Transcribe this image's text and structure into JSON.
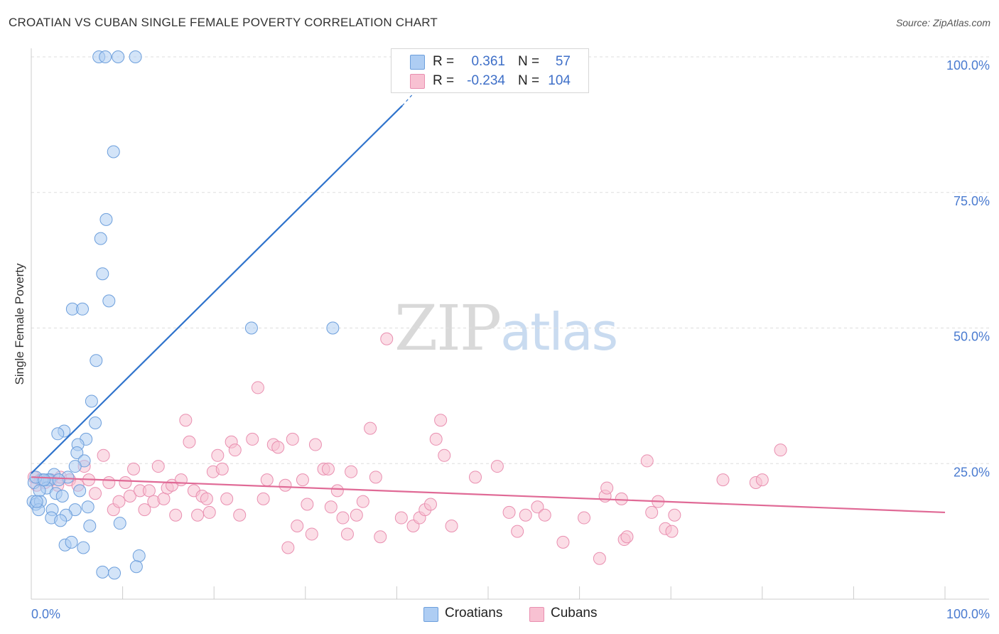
{
  "header": {
    "title": "CROATIAN VS CUBAN SINGLE FEMALE POVERTY CORRELATION CHART",
    "source": "Source: ZipAtlas.com"
  },
  "watermark": {
    "zip": "ZIP",
    "atlas": "atlas"
  },
  "colors": {
    "croatians_fill": "#aecdf3",
    "croatians_stroke": "#6d9fdc",
    "croatians_line": "#2f73cc",
    "cubans_fill": "#f8c1d2",
    "cubans_stroke": "#e98fb0",
    "cubans_line": "#e06a96",
    "grid": "#dedede",
    "axis_tick_text": "#4a7bd0"
  },
  "legend": {
    "r_label": "R =",
    "n_label": "N =",
    "croatians": {
      "r": "0.361",
      "n": "57"
    },
    "cubans": {
      "r": "-0.234",
      "n": "104"
    }
  },
  "bottom_legend": {
    "croatians": "Croatians",
    "cubans": "Cubans"
  },
  "chart_data": {
    "type": "scatter",
    "title": "CROATIAN VS CUBAN SINGLE FEMALE POVERTY CORRELATION CHART",
    "xlabel": "",
    "ylabel": "Single Female Poverty",
    "xlim": [
      0,
      100
    ],
    "ylim": [
      0,
      100
    ],
    "x_tick_labels": {
      "min": "0.0%",
      "max": "100.0%"
    },
    "y_tick_labels": [
      "25.0%",
      "50.0%",
      "75.0%",
      "100.0%"
    ],
    "y_ticks": [
      25,
      50,
      75,
      100
    ],
    "grid": true,
    "legend_position": "top-center",
    "series": [
      {
        "name": "Croatians",
        "r": 0.361,
        "n": 57,
        "trend": {
          "x": [
            0,
            40.6
          ],
          "y": [
            23.2,
            91.0
          ],
          "dashed_to": [
            42.5,
            94.5
          ]
        },
        "points": [
          [
            7.4,
            100
          ],
          [
            8.1,
            100
          ],
          [
            9.5,
            100
          ],
          [
            11.4,
            100
          ],
          [
            9.0,
            82.5
          ],
          [
            8.2,
            70
          ],
          [
            7.6,
            66.5
          ],
          [
            7.8,
            60
          ],
          [
            8.5,
            55
          ],
          [
            4.5,
            53.5
          ],
          [
            5.6,
            53.5
          ],
          [
            24.1,
            50
          ],
          [
            33.0,
            50
          ],
          [
            7.1,
            44
          ],
          [
            6.6,
            36.5
          ],
          [
            7.0,
            32.5
          ],
          [
            3.6,
            31
          ],
          [
            2.9,
            30.5
          ],
          [
            6.0,
            29.5
          ],
          [
            5.1,
            28.5
          ],
          [
            5.0,
            27
          ],
          [
            5.8,
            25.5
          ],
          [
            4.8,
            24.5
          ],
          [
            4.0,
            22.5
          ],
          [
            2.5,
            23
          ],
          [
            1.8,
            22
          ],
          [
            2.0,
            22
          ],
          [
            1.2,
            22
          ],
          [
            0.3,
            21.5
          ],
          [
            0.5,
            22.5
          ],
          [
            1.7,
            20.5
          ],
          [
            0.9,
            20
          ],
          [
            2.7,
            19.5
          ],
          [
            5.3,
            20
          ],
          [
            0.2,
            18
          ],
          [
            0.5,
            17.5
          ],
          [
            1.0,
            18
          ],
          [
            0.8,
            16.5
          ],
          [
            2.3,
            16.5
          ],
          [
            3.4,
            19
          ],
          [
            4.8,
            16.5
          ],
          [
            6.2,
            17
          ],
          [
            3.8,
            15.5
          ],
          [
            2.2,
            15
          ],
          [
            3.2,
            14.5
          ],
          [
            6.4,
            13.5
          ],
          [
            9.7,
            14
          ],
          [
            3.7,
            10
          ],
          [
            4.4,
            10.5
          ],
          [
            5.7,
            9.5
          ],
          [
            11.8,
            8
          ],
          [
            11.5,
            6
          ],
          [
            7.8,
            5
          ],
          [
            9.1,
            4.8
          ],
          [
            0.6,
            18
          ],
          [
            1.4,
            22
          ],
          [
            3.0,
            22
          ]
        ]
      },
      {
        "name": "Cubans",
        "r": -0.234,
        "n": 104,
        "trend": {
          "x": [
            0,
            100
          ],
          "y": [
            22.5,
            16.0
          ]
        },
        "points": [
          [
            0.3,
            22.5
          ],
          [
            0.6,
            21
          ],
          [
            1.0,
            22
          ],
          [
            1.5,
            21.5
          ],
          [
            2.2,
            22
          ],
          [
            2.9,
            21
          ],
          [
            3.2,
            22.5
          ],
          [
            4.2,
            22
          ],
          [
            5.1,
            21
          ],
          [
            5.8,
            24.5
          ],
          [
            6.3,
            22
          ],
          [
            7.0,
            19.5
          ],
          [
            7.9,
            26.5
          ],
          [
            8.5,
            21.5
          ],
          [
            9.0,
            16.5
          ],
          [
            9.6,
            18
          ],
          [
            10.3,
            21.5
          ],
          [
            10.8,
            19
          ],
          [
            11.2,
            24
          ],
          [
            11.9,
            20
          ],
          [
            12.4,
            16.5
          ],
          [
            12.9,
            20
          ],
          [
            13.4,
            18
          ],
          [
            13.9,
            24.5
          ],
          [
            14.5,
            18.5
          ],
          [
            14.9,
            20.5
          ],
          [
            15.4,
            21
          ],
          [
            15.8,
            15.5
          ],
          [
            16.4,
            22
          ],
          [
            16.9,
            33
          ],
          [
            17.3,
            29
          ],
          [
            17.8,
            20
          ],
          [
            18.2,
            15.5
          ],
          [
            18.7,
            19
          ],
          [
            19.2,
            18.5
          ],
          [
            19.5,
            16
          ],
          [
            19.9,
            23.5
          ],
          [
            20.4,
            26.5
          ],
          [
            20.9,
            24
          ],
          [
            21.4,
            18.5
          ],
          [
            21.9,
            29
          ],
          [
            22.3,
            27.5
          ],
          [
            22.8,
            15.5
          ],
          [
            24.2,
            29.5
          ],
          [
            24.8,
            39
          ],
          [
            25.4,
            18.5
          ],
          [
            25.8,
            22
          ],
          [
            26.5,
            28.5
          ],
          [
            27.0,
            28
          ],
          [
            27.8,
            21
          ],
          [
            28.1,
            9.5
          ],
          [
            28.6,
            29.5
          ],
          [
            29.1,
            13.5
          ],
          [
            29.7,
            22
          ],
          [
            30.2,
            17.5
          ],
          [
            30.7,
            12
          ],
          [
            31.1,
            28.5
          ],
          [
            32.0,
            24
          ],
          [
            32.5,
            24
          ],
          [
            32.8,
            17
          ],
          [
            33.5,
            20
          ],
          [
            34.1,
            15
          ],
          [
            34.6,
            12
          ],
          [
            35.0,
            23.5
          ],
          [
            35.6,
            15.5
          ],
          [
            36.3,
            18
          ],
          [
            37.1,
            31.5
          ],
          [
            37.7,
            22.5
          ],
          [
            38.2,
            11.5
          ],
          [
            38.9,
            48
          ],
          [
            40.5,
            15
          ],
          [
            41.8,
            13.5
          ],
          [
            42.5,
            15
          ],
          [
            43.1,
            16.5
          ],
          [
            43.7,
            17.5
          ],
          [
            44.3,
            29.5
          ],
          [
            44.8,
            33
          ],
          [
            45.2,
            26.5
          ],
          [
            46.0,
            13.5
          ],
          [
            48.6,
            22.5
          ],
          [
            51.0,
            24.5
          ],
          [
            52.3,
            16
          ],
          [
            53.2,
            12.5
          ],
          [
            54.1,
            15.5
          ],
          [
            55.4,
            17
          ],
          [
            56.2,
            15.5
          ],
          [
            58.2,
            10.5
          ],
          [
            60.5,
            15
          ],
          [
            62.2,
            7.5
          ],
          [
            62.8,
            19
          ],
          [
            63.0,
            20.5
          ],
          [
            64.6,
            18.5
          ],
          [
            64.9,
            11
          ],
          [
            65.2,
            11.5
          ],
          [
            67.4,
            25.5
          ],
          [
            67.9,
            16
          ],
          [
            68.6,
            18
          ],
          [
            69.4,
            13
          ],
          [
            70.1,
            12.5
          ],
          [
            70.4,
            15.5
          ],
          [
            75.7,
            22
          ],
          [
            79.3,
            21.5
          ],
          [
            80.0,
            22
          ],
          [
            82.0,
            27.5
          ]
        ]
      }
    ]
  }
}
